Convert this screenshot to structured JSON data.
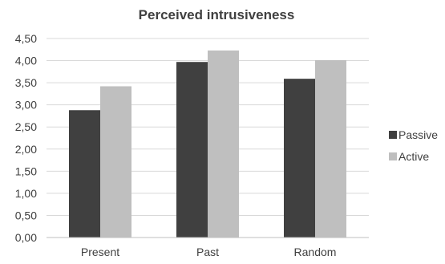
{
  "chart_data": {
    "type": "bar",
    "title": "Perceived intrusiveness",
    "categories": [
      "Present",
      "Past",
      "Random"
    ],
    "series": [
      {
        "name": "Passive",
        "values": [
          2.88,
          3.97,
          3.59
        ],
        "color": "#404040"
      },
      {
        "name": "Active",
        "values": [
          3.42,
          4.23,
          4.01
        ],
        "color": "#bfbfbf"
      }
    ],
    "ylim": [
      0,
      4.5
    ],
    "yticks": [
      "0,00",
      "0,50",
      "1,00",
      "1,50",
      "2,00",
      "2,50",
      "3,00",
      "3,50",
      "4,00",
      "4,50"
    ],
    "grid": true,
    "legend_position": "right"
  }
}
